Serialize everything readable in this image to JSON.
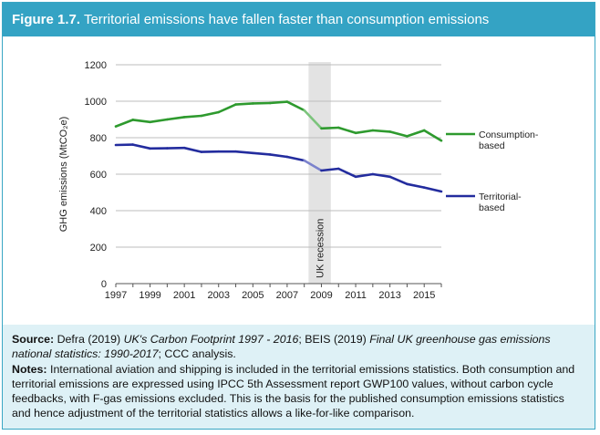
{
  "figure": {
    "number": "Figure 1.7.",
    "title": "Territorial emissions have fallen faster than consumption emissions"
  },
  "chart_data": {
    "type": "line",
    "x": [
      1997,
      1998,
      1999,
      2000,
      2001,
      2002,
      2003,
      2004,
      2005,
      2006,
      2007,
      2008,
      2009,
      2010,
      2011,
      2012,
      2013,
      2014,
      2015,
      2016
    ],
    "x_tick_labels": [
      "1997",
      "1999",
      "2001",
      "2003",
      "2005",
      "2007",
      "2009",
      "2011",
      "2013",
      "2015"
    ],
    "y_tick_labels": [
      "0",
      "200",
      "400",
      "600",
      "800",
      "1000",
      "1200"
    ],
    "ylabel": "GHG emissions (MtCO₂e)",
    "ylim": [
      0,
      1200
    ],
    "grid": true,
    "series": [
      {
        "name": "Consumption-\nbased",
        "legend_lines": [
          "Consumption-",
          "based"
        ],
        "color": "#2e9a2e",
        "recession_color": "#7cc47c",
        "values": [
          862,
          898,
          886,
          900,
          913,
          920,
          940,
          982,
          988,
          990,
          997,
          950,
          851,
          855,
          826,
          840,
          833,
          808,
          840,
          784
        ]
      },
      {
        "name": "Territorial-\nbased",
        "legend_lines": [
          "Territorial-",
          "based"
        ],
        "color": "#232c9e",
        "recession_color": "#7b82cc",
        "values": [
          760,
          762,
          741,
          742,
          744,
          722,
          724,
          724,
          716,
          708,
          695,
          675,
          620,
          630,
          586,
          600,
          586,
          546,
          527,
          505
        ]
      }
    ],
    "annotation": {
      "label": "UK recession",
      "x_start": 2008.25,
      "x_end": 2009.55,
      "color": "#e3e3e3"
    }
  },
  "footer": {
    "source_label": "Source:",
    "source_part1": " Defra (2019) ",
    "source_italic1": "UK's Carbon Footprint 1997 - 2016",
    "source_part2": "; BEIS (2019) ",
    "source_italic2": "Final UK greenhouse gas emissions national statistics: 1990-2017",
    "source_part3": "; CCC analysis.",
    "notes_label": "Notes:",
    "notes_text": " International aviation and shipping is included in the territorial emissions statistics. Both consumption and territorial emissions are expressed using IPCC 5th Assessment report GWP100 values, without carbon cycle feedbacks, with F-gas emissions excluded. This is the basis for the published consumption emissions statistics and hence adjustment of the territorial statistics allows a like-for-like comparison."
  }
}
